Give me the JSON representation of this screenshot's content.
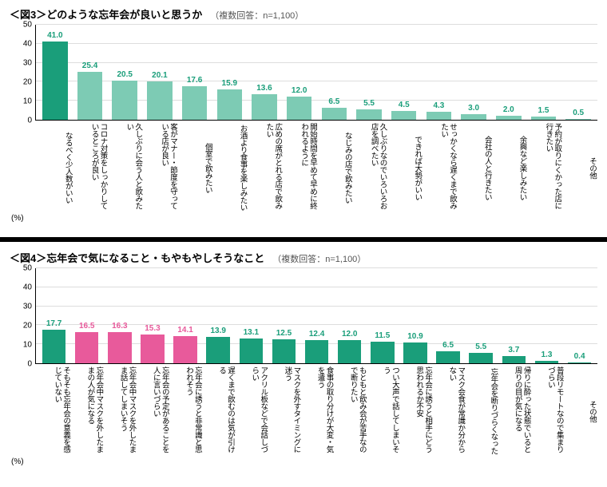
{
  "chart3": {
    "title": "＜図3＞どのような忘年会が良いと思うか",
    "sub": "（複数回答：n=1,100）",
    "pct_label": "(%)",
    "ylim": [
      0,
      50
    ],
    "ytick_step": 10,
    "yticks": [
      0,
      10,
      20,
      30,
      40,
      50
    ],
    "grid_color": "#dddddd",
    "colors": {
      "primary": "#1a9e7a",
      "secondary": "#7dcbb4",
      "value_primary": "#1a9e7a",
      "value_secondary": "#1a9e7a"
    },
    "bars": [
      {
        "label": "なるべく少人数がいい",
        "value": 41.0,
        "color": "#1a9e7a"
      },
      {
        "label": "コロナ対策をしっかりしているところが良い",
        "value": 25.4,
        "color": "#7dcbb4"
      },
      {
        "label": "久しぶりに会う人と飲みたい",
        "value": 20.5,
        "color": "#7dcbb4"
      },
      {
        "label": "客がマナー・節度を守っている店が良い",
        "value": 20.1,
        "color": "#7dcbb4"
      },
      {
        "label": "個室で飲みたい",
        "value": 17.6,
        "color": "#7dcbb4"
      },
      {
        "label": "お酒より食事を楽しみたい",
        "value": 15.9,
        "color": "#7dcbb4"
      },
      {
        "label": "広めの席がとれる店で飲みたい",
        "value": 13.6,
        "color": "#7dcbb4"
      },
      {
        "label": "開始時間を早めて早めに終われるように",
        "value": 12.0,
        "color": "#7dcbb4"
      },
      {
        "label": "なじみの店で飲みたい",
        "value": 6.5,
        "color": "#7dcbb4"
      },
      {
        "label": "久しぶりなのでいろいろお店を調べたい",
        "value": 5.5,
        "color": "#7dcbb4"
      },
      {
        "label": "できれば大勢がいい",
        "value": 4.5,
        "color": "#7dcbb4"
      },
      {
        "label": "せっかくなら遅くまで飲みたい",
        "value": 4.3,
        "color": "#7dcbb4"
      },
      {
        "label": "会社の人と行きたい",
        "value": 3.0,
        "color": "#7dcbb4"
      },
      {
        "label": "余興など楽しみたい",
        "value": 2.0,
        "color": "#7dcbb4"
      },
      {
        "label": "予約が取りにくかった店に行きたい",
        "value": 1.5,
        "color": "#7dcbb4"
      },
      {
        "label": "その他",
        "value": 0.5,
        "color": "#7dcbb4"
      }
    ]
  },
  "chart4": {
    "title": "＜図4＞忘年会で気になること・もやもやしそうなこと",
    "sub": "（複数回答：n=1,100）",
    "pct_label": "(%)",
    "ylim": [
      0,
      50
    ],
    "ytick_step": 10,
    "yticks": [
      0,
      10,
      20,
      30,
      40,
      50
    ],
    "grid_color": "#dddddd",
    "colors": {
      "primary": "#1a9e7a",
      "secondary": "#e85a9b"
    },
    "bars": [
      {
        "label": "そもそも忘年会の意義を感じていない",
        "value": 17.7,
        "color": "#1a9e7a",
        "vcolor": "#1a9e7a"
      },
      {
        "label": "忘年会中マスクを外したままの人が気になる",
        "value": 16.5,
        "color": "#e85a9b",
        "vcolor": "#e85a9b"
      },
      {
        "label": "忘年会中マスクを外したまま話してしまいそう",
        "value": 16.3,
        "color": "#e85a9b",
        "vcolor": "#e85a9b"
      },
      {
        "label": "忘年会の予定があることを人に言いづらい",
        "value": 15.3,
        "color": "#e85a9b",
        "vcolor": "#e85a9b"
      },
      {
        "label": "忘年会に誘うと非常識と思われそう",
        "value": 14.1,
        "color": "#e85a9b",
        "vcolor": "#e85a9b"
      },
      {
        "label": "遅くまで飲むのは気が引ける",
        "value": 13.9,
        "color": "#1a9e7a",
        "vcolor": "#1a9e7a"
      },
      {
        "label": "アクリル板などで会話しづらい",
        "value": 13.1,
        "color": "#1a9e7a",
        "vcolor": "#1a9e7a"
      },
      {
        "label": "マスクを外すタイミングに迷う",
        "value": 12.5,
        "color": "#1a9e7a",
        "vcolor": "#1a9e7a"
      },
      {
        "label": "食事の取り分けが大変・気を遣う",
        "value": 12.4,
        "color": "#1a9e7a",
        "vcolor": "#1a9e7a"
      },
      {
        "label": "もともと飲み会が苦手なので断りたい",
        "value": 12.0,
        "color": "#1a9e7a",
        "vcolor": "#1a9e7a"
      },
      {
        "label": "つい大声で話してしまいそう",
        "value": 11.5,
        "color": "#1a9e7a",
        "vcolor": "#1a9e7a"
      },
      {
        "label": "忘年会に誘うと相手にどう思われるか不安",
        "value": 10.9,
        "color": "#1a9e7a",
        "vcolor": "#1a9e7a"
      },
      {
        "label": "マスク会食が常識か分からない",
        "value": 6.5,
        "color": "#1a9e7a",
        "vcolor": "#1a9e7a"
      },
      {
        "label": "忘年会を断りづらくなった",
        "value": 5.5,
        "color": "#1a9e7a",
        "vcolor": "#1a9e7a"
      },
      {
        "label": "帰りに酔った状態でいると周りの目が気になる",
        "value": 3.7,
        "color": "#1a9e7a",
        "vcolor": "#1a9e7a"
      },
      {
        "label": "普段リモートなので集まりづらい",
        "value": 1.3,
        "color": "#1a9e7a",
        "vcolor": "#1a9e7a"
      },
      {
        "label": "その他",
        "value": 0.4,
        "color": "#1a9e7a",
        "vcolor": "#1a9e7a"
      }
    ]
  }
}
